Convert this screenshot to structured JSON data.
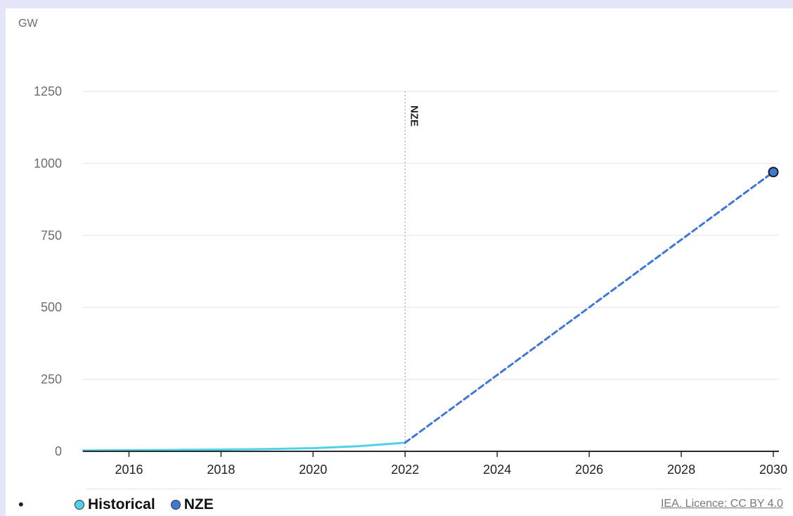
{
  "chart_data": {
    "type": "line",
    "ylabel": "GW",
    "xlim": [
      2015,
      2030
    ],
    "ylim": [
      0,
      1250
    ],
    "xticks": [
      2016,
      2018,
      2020,
      2022,
      2024,
      2026,
      2028,
      2030
    ],
    "yticks": [
      0,
      250,
      500,
      750,
      1000,
      1250
    ],
    "grid": true,
    "series": [
      {
        "name": "Historical",
        "color": "#4fd1ea",
        "style": "solid",
        "points": [
          [
            2015,
            3
          ],
          [
            2016,
            4
          ],
          [
            2017,
            5
          ],
          [
            2018,
            6
          ],
          [
            2019,
            8
          ],
          [
            2020,
            11
          ],
          [
            2021,
            18
          ],
          [
            2022,
            30
          ]
        ]
      },
      {
        "name": "NZE",
        "color": "#3f78d6",
        "style": "dashed",
        "points": [
          [
            2022,
            30
          ],
          [
            2030,
            970
          ]
        ],
        "end_marker": true
      }
    ],
    "annotations": [
      {
        "label": "NZE",
        "x": 2022,
        "type": "vertical-line"
      }
    ]
  },
  "legend": {
    "items": [
      {
        "label": "Historical",
        "color": "#4fd1ea"
      },
      {
        "label": "NZE",
        "color": "#3f78d6"
      }
    ]
  },
  "credit": "IEA. Licence: CC BY 4.0"
}
